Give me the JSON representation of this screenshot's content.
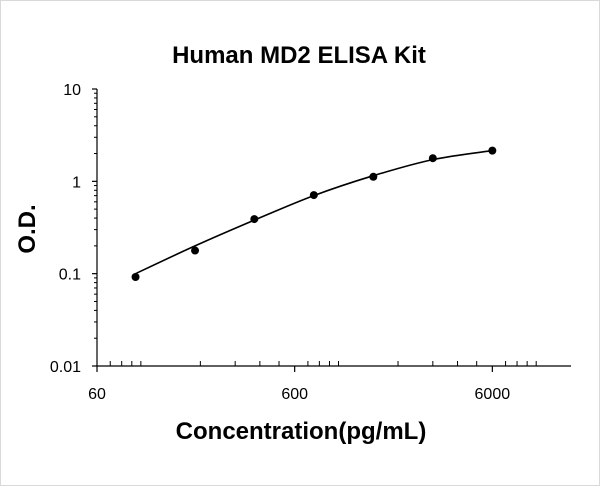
{
  "chart_data": {
    "type": "scatter",
    "title": "Human MD2 ELISA Kit",
    "xlabel": "Concentration(pg/mL)",
    "ylabel": "O.D.",
    "x_scale": "log",
    "y_scale": "log",
    "xlim": [
      60,
      15000
    ],
    "ylim": [
      0.01,
      10
    ],
    "x_ticks": [
      60,
      600,
      6000
    ],
    "y_ticks": [
      0.01,
      0.1,
      1,
      10
    ],
    "x_tick_labels": [
      "60",
      "600",
      "6000"
    ],
    "y_tick_labels": [
      "0.01",
      "0.1",
      "1",
      "10"
    ],
    "grid": false,
    "legend": "none",
    "series": [
      {
        "x": [
          94,
          188,
          375,
          750,
          1500,
          3000,
          6000
        ],
        "y": [
          0.092,
          0.178,
          0.39,
          0.71,
          1.12,
          1.78,
          2.15
        ]
      }
    ],
    "trendline": {
      "x": [
        94,
        188,
        375,
        750,
        1500,
        3000,
        6000
      ],
      "y": [
        0.1,
        0.2,
        0.38,
        0.7,
        1.15,
        1.72,
        2.15
      ]
    },
    "colors": {
      "marker": "#000000",
      "line": "#000000",
      "axis": "#000000"
    }
  }
}
